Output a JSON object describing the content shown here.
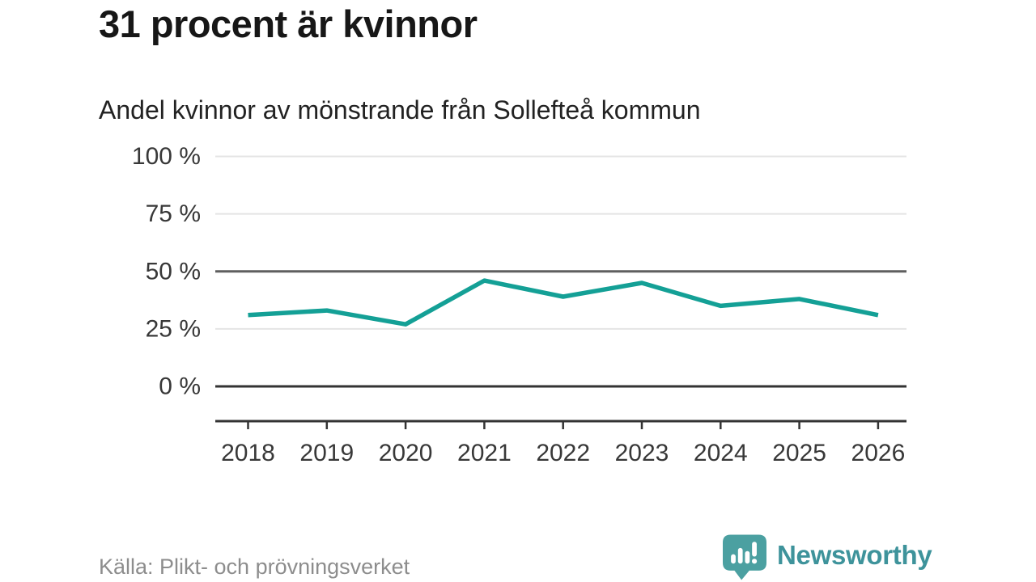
{
  "headline": "31 procent är kvinnor",
  "subtitle": "Andel kvinnor av mönstrande från Sollefteå kommun",
  "footer": {
    "source": "Källa: Plikt- och prövningsverket",
    "brand": "Newsworthy",
    "logo_icon": "speech-bubble-bar-chart-icon"
  },
  "colors": {
    "line": "#14a096",
    "grid_light": "#e4e4e4",
    "grid_mid": "#5f5f5f",
    "axis_dark": "#333333",
    "tick_label": "#383838",
    "logo_bubble": "#4ba0a1",
    "brand_text": "#3e939b"
  },
  "chart_data": {
    "type": "line",
    "categories": [
      "2018",
      "2019",
      "2020",
      "2021",
      "2022",
      "2023",
      "2024",
      "2025",
      "2026"
    ],
    "series": [
      {
        "name": "Andel kvinnor av mönstrande",
        "values": [
          31,
          33,
          27,
          46,
          39,
          45,
          35,
          38,
          31
        ]
      }
    ],
    "title": "Andel kvinnor av mönstrande från Sollefteå kommun",
    "xlabel": "",
    "ylabel": "",
    "ylim": [
      0,
      100
    ],
    "yticks": [
      0,
      25,
      50,
      75,
      100
    ],
    "ytick_labels": [
      "0 %",
      "25 %",
      "50 %",
      "75 %",
      "100 %"
    ],
    "emphasized_gridlines": [
      0,
      50
    ],
    "grid": true,
    "legend": false,
    "line_color": "#14a096"
  }
}
